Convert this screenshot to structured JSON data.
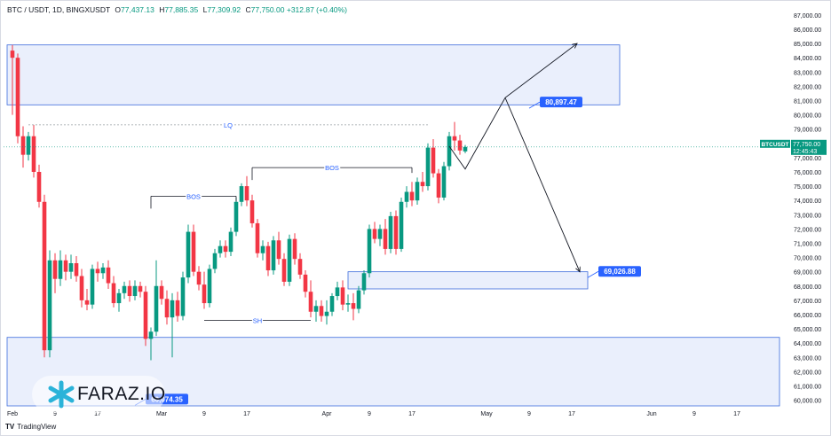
{
  "header": {
    "symbol": "BTC / USDT, 1D, BINGXUSDT",
    "open_label": "O",
    "open": "77,437.13",
    "high_label": "H",
    "high": "77,885.35",
    "low_label": "L",
    "low": "77,309.92",
    "close_label": "C",
    "close": "77,750.00",
    "change": "+312.87 (+0.40%)"
  },
  "footer": {
    "brand": "TradingView"
  },
  "watermark": {
    "text": "FARAZ.IO"
  },
  "colors": {
    "up": "#089981",
    "down": "#f23645",
    "zone_fill": "#e3e9fb",
    "zone_stroke": "#3c6bdc",
    "label_bg": "#2962ff",
    "annot": "#2962ff",
    "price_tag": "#089981"
  },
  "chart_data": {
    "type": "candlestick",
    "title": "BTC / USDT, 1D, BINGXUSDT",
    "ylim": [
      59600,
      87800
    ],
    "yticks": [
      "60,000.00",
      "61,000.00",
      "62,000.00",
      "63,000.00",
      "64,000.00",
      "65,000.00",
      "66,000.00",
      "67,000.00",
      "68,000.00",
      "69,000.00",
      "70,000.00",
      "71,000.00",
      "72,000.00",
      "73,000.00",
      "74,000.00",
      "75,000.00",
      "76,000.00",
      "77,000.00",
      "78,000.00",
      "79,000.00",
      "80,000.00",
      "81,000.00",
      "82,000.00",
      "83,000.00",
      "84,000.00",
      "85,000.00",
      "86,000.00",
      "87,000.00"
    ],
    "xticks": [
      {
        "label": "Feb",
        "day": 0
      },
      {
        "label": "9",
        "day": 8
      },
      {
        "label": "17",
        "day": 16
      },
      {
        "label": "Mar",
        "day": 28
      },
      {
        "label": "9",
        "day": 36
      },
      {
        "label": "17",
        "day": 44
      },
      {
        "label": "Apr",
        "day": 59
      },
      {
        "label": "9",
        "day": 67
      },
      {
        "label": "17",
        "day": 75
      },
      {
        "label": "May",
        "day": 89
      },
      {
        "label": "9",
        "day": 97
      },
      {
        "label": "17",
        "day": 105
      },
      {
        "label": "Jun",
        "day": 120
      },
      {
        "label": "9",
        "day": 128
      },
      {
        "label": "17",
        "day": 136
      }
    ],
    "candles": [
      {
        "o": 84500,
        "h": 84900,
        "l": 80000,
        "c": 84000
      },
      {
        "o": 84000,
        "h": 84300,
        "l": 78000,
        "c": 78500
      },
      {
        "o": 78500,
        "h": 79200,
        "l": 76300,
        "c": 77200
      },
      {
        "o": 77200,
        "h": 78800,
        "l": 76800,
        "c": 78500
      },
      {
        "o": 78500,
        "h": 79300,
        "l": 75600,
        "c": 76000
      },
      {
        "o": 76000,
        "h": 76500,
        "l": 73500,
        "c": 73900
      },
      {
        "o": 73900,
        "h": 74400,
        "l": 63000,
        "c": 63500
      },
      {
        "o": 63500,
        "h": 70500,
        "l": 63000,
        "c": 69800
      },
      {
        "o": 69800,
        "h": 70300,
        "l": 67500,
        "c": 68500
      },
      {
        "o": 68500,
        "h": 70500,
        "l": 68000,
        "c": 69800
      },
      {
        "o": 69800,
        "h": 70200,
        "l": 68400,
        "c": 69000
      },
      {
        "o": 69000,
        "h": 70200,
        "l": 68500,
        "c": 69600
      },
      {
        "o": 69600,
        "h": 70100,
        "l": 68300,
        "c": 68700
      },
      {
        "o": 68700,
        "h": 69200,
        "l": 66500,
        "c": 67000
      },
      {
        "o": 67000,
        "h": 67800,
        "l": 66300,
        "c": 66700
      },
      {
        "o": 66700,
        "h": 69500,
        "l": 66400,
        "c": 69200
      },
      {
        "o": 69200,
        "h": 69700,
        "l": 68300,
        "c": 68900
      },
      {
        "o": 68900,
        "h": 69600,
        "l": 68500,
        "c": 69300
      },
      {
        "o": 69300,
        "h": 69800,
        "l": 67800,
        "c": 68200
      },
      {
        "o": 68200,
        "h": 68700,
        "l": 66500,
        "c": 66800
      },
      {
        "o": 66800,
        "h": 67800,
        "l": 66200,
        "c": 67500
      },
      {
        "o": 67500,
        "h": 68300,
        "l": 67100,
        "c": 68000
      },
      {
        "o": 68000,
        "h": 68400,
        "l": 66900,
        "c": 67300
      },
      {
        "o": 67300,
        "h": 68400,
        "l": 67000,
        "c": 68000
      },
      {
        "o": 68000,
        "h": 68300,
        "l": 67200,
        "c": 67600
      },
      {
        "o": 67600,
        "h": 68000,
        "l": 63800,
        "c": 64300
      },
      {
        "o": 64300,
        "h": 65100,
        "l": 62800,
        "c": 64800
      },
      {
        "o": 64800,
        "h": 69800,
        "l": 64500,
        "c": 68000
      },
      {
        "o": 68000,
        "h": 68400,
        "l": 66700,
        "c": 67100
      },
      {
        "o": 67100,
        "h": 67700,
        "l": 65300,
        "c": 65800
      },
      {
        "o": 65800,
        "h": 67500,
        "l": 63000,
        "c": 67000
      },
      {
        "o": 67000,
        "h": 67600,
        "l": 65500,
        "c": 65900
      },
      {
        "o": 65900,
        "h": 69000,
        "l": 65600,
        "c": 68600
      },
      {
        "o": 68600,
        "h": 72300,
        "l": 68200,
        "c": 71800
      },
      {
        "o": 71800,
        "h": 72300,
        "l": 68700,
        "c": 69000
      },
      {
        "o": 69000,
        "h": 69400,
        "l": 67700,
        "c": 68100
      },
      {
        "o": 68100,
        "h": 69000,
        "l": 66400,
        "c": 66800
      },
      {
        "o": 66800,
        "h": 69500,
        "l": 66500,
        "c": 69200
      },
      {
        "o": 69200,
        "h": 70600,
        "l": 68900,
        "c": 70300
      },
      {
        "o": 70300,
        "h": 71200,
        "l": 70000,
        "c": 70800
      },
      {
        "o": 70800,
        "h": 71200,
        "l": 70000,
        "c": 70400
      },
      {
        "o": 70400,
        "h": 72100,
        "l": 70100,
        "c": 71800
      },
      {
        "o": 71800,
        "h": 74200,
        "l": 71500,
        "c": 73900
      },
      {
        "o": 73900,
        "h": 75200,
        "l": 73600,
        "c": 75000
      },
      {
        "o": 75000,
        "h": 75700,
        "l": 73600,
        "c": 74000
      },
      {
        "o": 74000,
        "h": 74400,
        "l": 72100,
        "c": 72400
      },
      {
        "o": 72400,
        "h": 72700,
        "l": 70000,
        "c": 70300
      },
      {
        "o": 70300,
        "h": 71200,
        "l": 69800,
        "c": 70800
      },
      {
        "o": 70800,
        "h": 71100,
        "l": 68700,
        "c": 69100
      },
      {
        "o": 69100,
        "h": 71500,
        "l": 68800,
        "c": 71200
      },
      {
        "o": 71200,
        "h": 71800,
        "l": 69500,
        "c": 69900
      },
      {
        "o": 69900,
        "h": 70300,
        "l": 68000,
        "c": 68300
      },
      {
        "o": 68300,
        "h": 71600,
        "l": 68000,
        "c": 71300
      },
      {
        "o": 71300,
        "h": 71700,
        "l": 69500,
        "c": 69900
      },
      {
        "o": 69900,
        "h": 70300,
        "l": 68500,
        "c": 68800
      },
      {
        "o": 68800,
        "h": 69100,
        "l": 67200,
        "c": 67600
      },
      {
        "o": 67600,
        "h": 68400,
        "l": 65800,
        "c": 66200
      },
      {
        "o": 66200,
        "h": 67000,
        "l": 65500,
        "c": 66600
      },
      {
        "o": 66600,
        "h": 67000,
        "l": 65500,
        "c": 65900
      },
      {
        "o": 65900,
        "h": 67000,
        "l": 65300,
        "c": 66200
      },
      {
        "o": 66200,
        "h": 67500,
        "l": 65900,
        "c": 67300
      },
      {
        "o": 67300,
        "h": 68300,
        "l": 67000,
        "c": 67900
      },
      {
        "o": 67900,
        "h": 68400,
        "l": 66300,
        "c": 66700
      },
      {
        "o": 66700,
        "h": 67400,
        "l": 66200,
        "c": 66800
      },
      {
        "o": 66800,
        "h": 67500,
        "l": 65600,
        "c": 66400
      },
      {
        "o": 66400,
        "h": 68000,
        "l": 66100,
        "c": 67700
      },
      {
        "o": 67700,
        "h": 69100,
        "l": 67400,
        "c": 68900
      },
      {
        "o": 68900,
        "h": 72300,
        "l": 68600,
        "c": 72000
      },
      {
        "o": 72000,
        "h": 72500,
        "l": 71000,
        "c": 71300
      },
      {
        "o": 71300,
        "h": 72300,
        "l": 70800,
        "c": 72000
      },
      {
        "o": 72000,
        "h": 72700,
        "l": 70200,
        "c": 70600
      },
      {
        "o": 70600,
        "h": 73200,
        "l": 70300,
        "c": 72900
      },
      {
        "o": 72900,
        "h": 73300,
        "l": 70200,
        "c": 70600
      },
      {
        "o": 70600,
        "h": 74200,
        "l": 70400,
        "c": 73900
      },
      {
        "o": 73900,
        "h": 75000,
        "l": 73500,
        "c": 74600
      },
      {
        "o": 74600,
        "h": 75300,
        "l": 73600,
        "c": 74000
      },
      {
        "o": 74000,
        "h": 75600,
        "l": 73700,
        "c": 75300
      },
      {
        "o": 75300,
        "h": 76000,
        "l": 74600,
        "c": 75000
      },
      {
        "o": 75000,
        "h": 78000,
        "l": 74700,
        "c": 77700
      },
      {
        "o": 77700,
        "h": 78300,
        "l": 75600,
        "c": 75900
      },
      {
        "o": 75900,
        "h": 76200,
        "l": 73800,
        "c": 74200
      },
      {
        "o": 74200,
        "h": 76700,
        "l": 74000,
        "c": 76400
      },
      {
        "o": 76400,
        "h": 78800,
        "l": 76100,
        "c": 78500
      },
      {
        "o": 78500,
        "h": 79500,
        "l": 77500,
        "c": 78200
      },
      {
        "o": 78200,
        "h": 78600,
        "l": 77200,
        "c": 77500
      },
      {
        "o": 77437.13,
        "h": 77885.35,
        "l": 77309.92,
        "c": 77750
      }
    ],
    "last_price": {
      "symbol": "BTCUSDT",
      "price": "77,750.00",
      "countdown": "12:45:43"
    },
    "zones": [
      {
        "name": "supply-zone-top",
        "from_day": -1,
        "to_day": 114,
        "low": 80700,
        "high": 84900
      },
      {
        "name": "demand-zone-mid",
        "from_day": 63,
        "to_day": 108,
        "low": 67800,
        "high": 69000
      },
      {
        "name": "demand-zone-bottom",
        "from_day": -1,
        "to_day": 144,
        "low": 59600,
        "high": 64400
      }
    ],
    "levels": [
      {
        "label": "LQ",
        "from_day": 3,
        "to_day": 78,
        "price": 79300
      },
      {
        "label": "BOS",
        "from_day": 26,
        "to_day": 42,
        "price": 74300
      },
      {
        "label": "BOS",
        "from_day": 45,
        "to_day": 75,
        "price": 76300
      },
      {
        "label": "SH",
        "from_day": 36,
        "to_day": 56,
        "price": 65600
      }
    ],
    "price_labels": [
      {
        "text": "80,897.47",
        "day": 99,
        "price": 80897.47
      },
      {
        "text": "69,026.88",
        "day": 110,
        "price": 69026.88
      },
      {
        "text": "60,074.35",
        "day": 25,
        "price": 60074.35
      }
    ],
    "projection": [
      {
        "day": 82,
        "price": 77800
      },
      {
        "day": 85,
        "price": 76200
      },
      {
        "day": 92.5,
        "price": 81200
      },
      {
        "day": 106,
        "price": 85000
      }
    ],
    "projection2": [
      {
        "day": 92.5,
        "price": 81200
      },
      {
        "day": 106.5,
        "price": 69000
      }
    ]
  }
}
